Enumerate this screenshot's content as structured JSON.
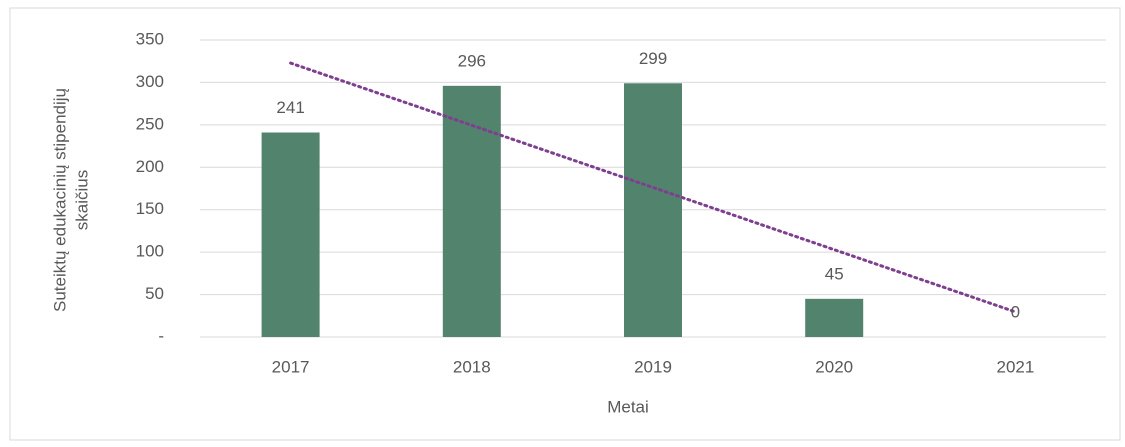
{
  "chart_data": {
    "type": "bar",
    "categories": [
      "2017",
      "2018",
      "2019",
      "2020",
      "2021"
    ],
    "values": [
      241,
      296,
      299,
      45,
      0
    ],
    "color": "#52836d",
    "xlabel": "Metai",
    "ylabel": [
      "Suteiktų edukacinių stipendijų",
      "skaičius"
    ],
    "ylim": [
      0,
      350
    ],
    "yticks": [
      {
        "value": 0,
        "label": "-"
      },
      50,
      100,
      150,
      200,
      250,
      300,
      350
    ],
    "grid": true,
    "trendline": true,
    "trendline_color": "#7e3f8f"
  }
}
